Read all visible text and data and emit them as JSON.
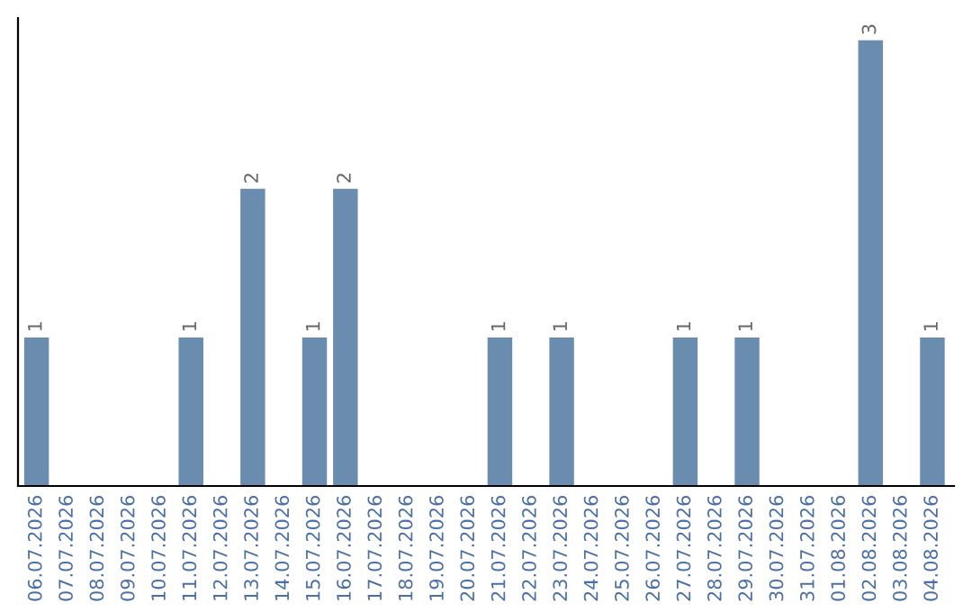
{
  "chart_data": {
    "type": "bar",
    "categories": [
      "06.07.2026",
      "07.07.2026",
      "08.07.2026",
      "09.07.2026",
      "10.07.2026",
      "11.07.2026",
      "12.07.2026",
      "13.07.2026",
      "14.07.2026",
      "15.07.2026",
      "16.07.2026",
      "17.07.2026",
      "18.07.2026",
      "19.07.2026",
      "20.07.2026",
      "21.07.2026",
      "22.07.2026",
      "23.07.2026",
      "24.07.2026",
      "25.07.2026",
      "26.07.2026",
      "27.07.2026",
      "28.07.2026",
      "29.07.2026",
      "30.07.2026",
      "31.07.2026",
      "01.08.2026",
      "02.08.2026",
      "03.08.2026",
      "04.08.2026"
    ],
    "values": [
      1,
      0,
      0,
      0,
      0,
      1,
      0,
      2,
      0,
      1,
      2,
      0,
      0,
      0,
      0,
      1,
      0,
      1,
      0,
      0,
      0,
      1,
      0,
      1,
      0,
      0,
      0,
      3,
      0,
      1
    ],
    "value_labels": [
      "1",
      null,
      null,
      null,
      null,
      "1",
      null,
      "2",
      null,
      "1",
      "2",
      null,
      null,
      null,
      null,
      "1",
      null,
      "1",
      null,
      null,
      null,
      "1",
      null,
      "1",
      null,
      null,
      null,
      "3",
      null,
      "1"
    ],
    "color": "#6a8caf",
    "tick_labels": "x",
    "grid": false,
    "legend": false
  }
}
